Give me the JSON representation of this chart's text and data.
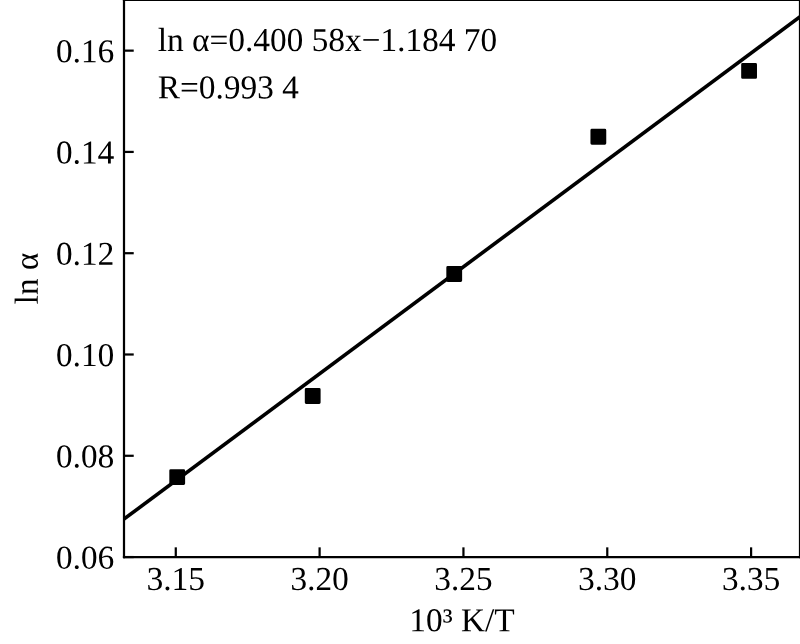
{
  "chart_data": {
    "type": "scatter",
    "xlabel": "10³ K/T",
    "ylabel": "ln α",
    "annotations": [
      "ln α=0.400 58x−1.184 70",
      "R=0.993 4"
    ],
    "xlim": [
      3.132,
      3.367
    ],
    "ylim": [
      0.06,
      0.17
    ],
    "xticks": [
      3.15,
      {
        "value": 3.2,
        "label": "3.20"
      },
      3.25,
      {
        "value": 3.3,
        "label": "3.30"
      },
      3.35
    ],
    "yticks": [
      0.06,
      0.08,
      {
        "value": 0.1,
        "label": "0.10"
      },
      0.12,
      0.14,
      0.16
    ],
    "grid": false,
    "legend": false,
    "marker": "square",
    "series": [
      {
        "color": "#000000",
        "x": [
          3.1505,
          3.1976,
          3.2468,
          3.2969,
          3.3493
        ],
        "values": [
          0.0758,
          0.0918,
          0.1159,
          0.143,
          0.156
        ]
      },
      {
        "type": "line",
        "color": "#000000",
        "marker": "none",
        "line_style": "solid",
        "x": [
          3.132,
          3.367
        ],
        "values": [
          0.0675,
          0.1667
        ]
      }
    ]
  }
}
